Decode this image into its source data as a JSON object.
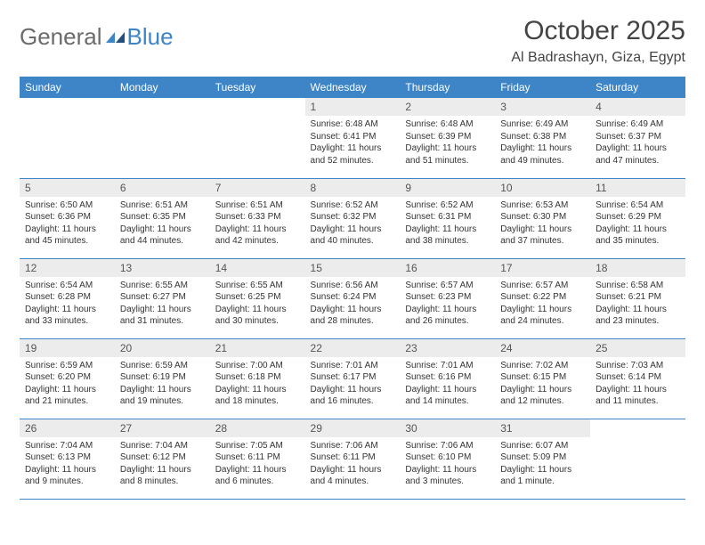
{
  "logo": {
    "part1": "General",
    "part2": "Blue"
  },
  "title": "October 2025",
  "location": "Al Badrashayn, Giza, Egypt",
  "colors": {
    "header_bg": "#3d85c6",
    "header_text": "#ffffff",
    "daynum_bg": "#ececec",
    "border": "#3d85c6",
    "text": "#333333",
    "title": "#444444"
  },
  "weekdays": [
    "Sunday",
    "Monday",
    "Tuesday",
    "Wednesday",
    "Thursday",
    "Friday",
    "Saturday"
  ],
  "weeks": [
    [
      null,
      null,
      null,
      {
        "n": "1",
        "sr": "6:48 AM",
        "ss": "6:41 PM",
        "dl": "11 hours and 52 minutes."
      },
      {
        "n": "2",
        "sr": "6:48 AM",
        "ss": "6:39 PM",
        "dl": "11 hours and 51 minutes."
      },
      {
        "n": "3",
        "sr": "6:49 AM",
        "ss": "6:38 PM",
        "dl": "11 hours and 49 minutes."
      },
      {
        "n": "4",
        "sr": "6:49 AM",
        "ss": "6:37 PM",
        "dl": "11 hours and 47 minutes."
      }
    ],
    [
      {
        "n": "5",
        "sr": "6:50 AM",
        "ss": "6:36 PM",
        "dl": "11 hours and 45 minutes."
      },
      {
        "n": "6",
        "sr": "6:51 AM",
        "ss": "6:35 PM",
        "dl": "11 hours and 44 minutes."
      },
      {
        "n": "7",
        "sr": "6:51 AM",
        "ss": "6:33 PM",
        "dl": "11 hours and 42 minutes."
      },
      {
        "n": "8",
        "sr": "6:52 AM",
        "ss": "6:32 PM",
        "dl": "11 hours and 40 minutes."
      },
      {
        "n": "9",
        "sr": "6:52 AM",
        "ss": "6:31 PM",
        "dl": "11 hours and 38 minutes."
      },
      {
        "n": "10",
        "sr": "6:53 AM",
        "ss": "6:30 PM",
        "dl": "11 hours and 37 minutes."
      },
      {
        "n": "11",
        "sr": "6:54 AM",
        "ss": "6:29 PM",
        "dl": "11 hours and 35 minutes."
      }
    ],
    [
      {
        "n": "12",
        "sr": "6:54 AM",
        "ss": "6:28 PM",
        "dl": "11 hours and 33 minutes."
      },
      {
        "n": "13",
        "sr": "6:55 AM",
        "ss": "6:27 PM",
        "dl": "11 hours and 31 minutes."
      },
      {
        "n": "14",
        "sr": "6:55 AM",
        "ss": "6:25 PM",
        "dl": "11 hours and 30 minutes."
      },
      {
        "n": "15",
        "sr": "6:56 AM",
        "ss": "6:24 PM",
        "dl": "11 hours and 28 minutes."
      },
      {
        "n": "16",
        "sr": "6:57 AM",
        "ss": "6:23 PM",
        "dl": "11 hours and 26 minutes."
      },
      {
        "n": "17",
        "sr": "6:57 AM",
        "ss": "6:22 PM",
        "dl": "11 hours and 24 minutes."
      },
      {
        "n": "18",
        "sr": "6:58 AM",
        "ss": "6:21 PM",
        "dl": "11 hours and 23 minutes."
      }
    ],
    [
      {
        "n": "19",
        "sr": "6:59 AM",
        "ss": "6:20 PM",
        "dl": "11 hours and 21 minutes."
      },
      {
        "n": "20",
        "sr": "6:59 AM",
        "ss": "6:19 PM",
        "dl": "11 hours and 19 minutes."
      },
      {
        "n": "21",
        "sr": "7:00 AM",
        "ss": "6:18 PM",
        "dl": "11 hours and 18 minutes."
      },
      {
        "n": "22",
        "sr": "7:01 AM",
        "ss": "6:17 PM",
        "dl": "11 hours and 16 minutes."
      },
      {
        "n": "23",
        "sr": "7:01 AM",
        "ss": "6:16 PM",
        "dl": "11 hours and 14 minutes."
      },
      {
        "n": "24",
        "sr": "7:02 AM",
        "ss": "6:15 PM",
        "dl": "11 hours and 12 minutes."
      },
      {
        "n": "25",
        "sr": "7:03 AM",
        "ss": "6:14 PM",
        "dl": "11 hours and 11 minutes."
      }
    ],
    [
      {
        "n": "26",
        "sr": "7:04 AM",
        "ss": "6:13 PM",
        "dl": "11 hours and 9 minutes."
      },
      {
        "n": "27",
        "sr": "7:04 AM",
        "ss": "6:12 PM",
        "dl": "11 hours and 8 minutes."
      },
      {
        "n": "28",
        "sr": "7:05 AM",
        "ss": "6:11 PM",
        "dl": "11 hours and 6 minutes."
      },
      {
        "n": "29",
        "sr": "7:06 AM",
        "ss": "6:11 PM",
        "dl": "11 hours and 4 minutes."
      },
      {
        "n": "30",
        "sr": "7:06 AM",
        "ss": "6:10 PM",
        "dl": "11 hours and 3 minutes."
      },
      {
        "n": "31",
        "sr": "6:07 AM",
        "ss": "5:09 PM",
        "dl": "11 hours and 1 minute."
      },
      null
    ]
  ],
  "labels": {
    "sunrise": "Sunrise:",
    "sunset": "Sunset:",
    "daylight": "Daylight:"
  }
}
